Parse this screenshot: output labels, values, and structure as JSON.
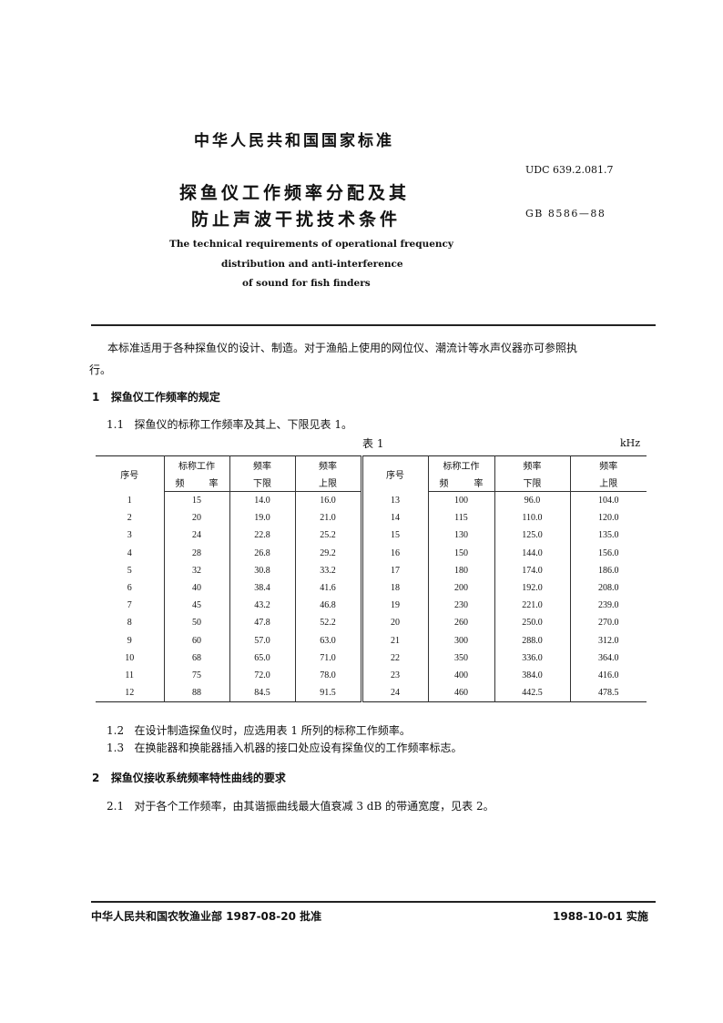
{
  "header": {
    "national_standard": "中华人民共和国国家标准",
    "title_line1": "探鱼仪工作频率分配及其",
    "title_line2": "防止声波干扰技术条件",
    "udc": "UDC 639.2.081.7",
    "gb": "GB 8586—88",
    "en_title_line1": "The technical requirements of operational frequency",
    "en_title_line2": "distribution and anti-interference",
    "en_title_line3": "of sound for fish finders"
  },
  "body": {
    "intro_line1": "本标准适用于各种探鱼仪的设计、制造。对于渔船上使用的网位仪、潮流计等水声仪器亦可参照执",
    "intro_line2": "行。",
    "sec1_num": "1",
    "sec1_title": "探鱼仪工作频率的规定",
    "s11_num": "1.1",
    "s11_text": "探鱼仪的标称工作频率及其上、下限见表 1。",
    "table_caption": "表 1",
    "table_unit": "kHz",
    "s12_num": "1.2",
    "s12_text": "在设计制造探鱼仪时，应选用表 1 所列的标称工作频率。",
    "s13_num": "1.3",
    "s13_text": "在换能器和换能器插入机器的接口处应设有探鱼仪的工作频率标志。",
    "sec2_num": "2",
    "sec2_title": "探鱼仪接收系统频率特性曲线的要求",
    "s21_num": "2.1",
    "s21_text": "对于各个工作频率，由其谐振曲线最大值衰减 3 dB 的带通宽度，见表 2。"
  },
  "table": {
    "headers": {
      "seq": "序号",
      "nominal_a": "标称工作",
      "nominal_b1": "频",
      "nominal_b2": "率",
      "lower_a": "频率",
      "lower_b": "下限",
      "upper_a": "频率",
      "upper_b": "上限"
    },
    "rows": [
      [
        "1",
        "15",
        "14.0",
        "16.0",
        "13",
        "100",
        "96.0",
        "104.0"
      ],
      [
        "2",
        "20",
        "19.0",
        "21.0",
        "14",
        "115",
        "110.0",
        "120.0"
      ],
      [
        "3",
        "24",
        "22.8",
        "25.2",
        "15",
        "130",
        "125.0",
        "135.0"
      ],
      [
        "4",
        "28",
        "26.8",
        "29.2",
        "16",
        "150",
        "144.0",
        "156.0"
      ],
      [
        "5",
        "32",
        "30.8",
        "33.2",
        "17",
        "180",
        "174.0",
        "186.0"
      ],
      [
        "6",
        "40",
        "38.4",
        "41.6",
        "18",
        "200",
        "192.0",
        "208.0"
      ],
      [
        "7",
        "45",
        "43.2",
        "46.8",
        "19",
        "230",
        "221.0",
        "239.0"
      ],
      [
        "8",
        "50",
        "47.8",
        "52.2",
        "20",
        "260",
        "250.0",
        "270.0"
      ],
      [
        "9",
        "60",
        "57.0",
        "63.0",
        "21",
        "300",
        "288.0",
        "312.0"
      ],
      [
        "10",
        "68",
        "65.0",
        "71.0",
        "22",
        "350",
        "336.0",
        "364.0"
      ],
      [
        "11",
        "75",
        "72.0",
        "78.0",
        "23",
        "400",
        "384.0",
        "416.0"
      ],
      [
        "12",
        "88",
        "84.5",
        "91.5",
        "24",
        "460",
        "442.5",
        "478.5"
      ]
    ]
  },
  "footer": {
    "approval": "中华人民共和国农牧渔业部 1987-08-20 批准",
    "effective": "1988-10-01 实施"
  }
}
